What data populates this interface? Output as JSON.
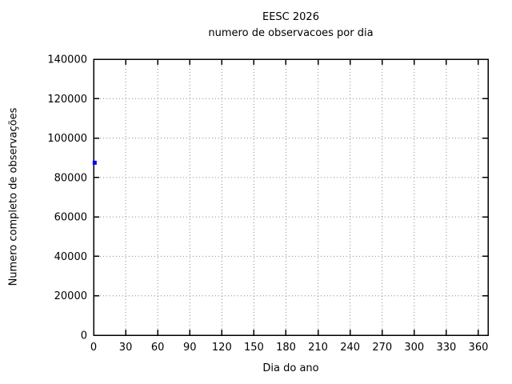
{
  "chart_data": {
    "type": "scatter",
    "title": "EESC 2026",
    "subtitle": "numero de observacoes por dia",
    "xlabel": "Dia do ano",
    "ylabel": "Numero completo de observações",
    "xlim": [
      0,
      369
    ],
    "ylim": [
      0,
      140000
    ],
    "xticks": [
      0,
      30,
      60,
      90,
      120,
      150,
      180,
      210,
      240,
      270,
      300,
      330,
      360
    ],
    "yticks": [
      0,
      20000,
      40000,
      60000,
      80000,
      100000,
      120000,
      140000
    ],
    "grid": "dotted",
    "legend": "none",
    "series": [
      {
        "name": "observacoes",
        "marker": "square",
        "color": "#0000ff",
        "points": [
          {
            "x": 1,
            "y": 87500
          }
        ]
      }
    ],
    "colors": {
      "background": "#ffffff",
      "axis": "#000000",
      "grid": "#888888",
      "text": "#000000",
      "point": "#0000ff"
    }
  }
}
